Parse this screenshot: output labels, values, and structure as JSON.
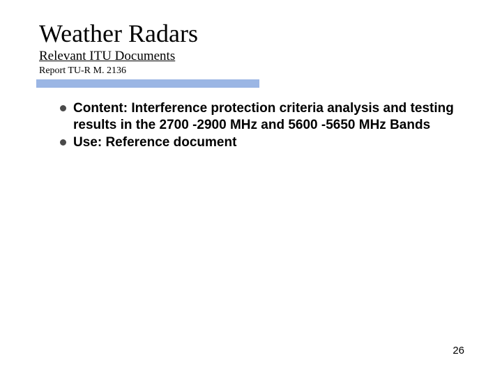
{
  "colors": {
    "bar": "#9bb6e4",
    "bullet": "#4a4a4a",
    "text": "#000000",
    "background": "#ffffff"
  },
  "header": {
    "title": "Weather Radars",
    "subtitle": "Relevant ITU Documents",
    "docref": "Report TU-R M. 2136"
  },
  "bullets": [
    {
      "label": "Content: Interference protection criteria analysis and testing results in the 2700 -2900 MHz and 5600 -5650 MHz Bands"
    },
    {
      "label": "Use: Reference document"
    }
  ],
  "page_number": "26",
  "typography": {
    "title_fontsize": 36,
    "subtitle_fontsize": 19,
    "docref_fontsize": 14,
    "bullet_fontsize": 19,
    "pagenum_fontsize": 15
  }
}
